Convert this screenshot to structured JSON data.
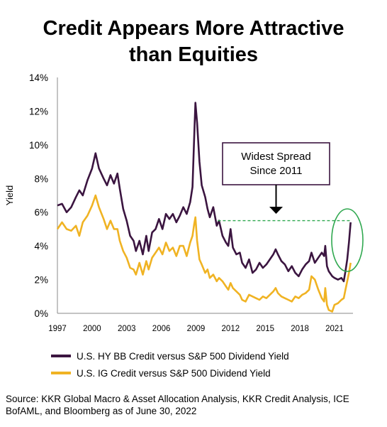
{
  "title_line1": "Credit Appears More Attractive",
  "title_line2": "than Equities",
  "source_line1": "Source: KKR Global Macro & Asset Allocation Analysis, KKR Credit Analysis, ICE",
  "source_line2": "BofAML, and Bloomberg as of June 30, 2022",
  "colors": {
    "hy": "#3b1540",
    "ig": "#f0b323",
    "spread_line": "#2fa84f",
    "circle": "#2fa84f",
    "axis": "#888888"
  },
  "chart_data": {
    "type": "line",
    "title": "Credit Appears More Attractive than Equities",
    "ylabel": "Yield",
    "xlabel": "",
    "xlim": [
      1997,
      2022.6
    ],
    "ylim": [
      0,
      14
    ],
    "x_ticks": [
      "1997",
      "2000",
      "2003",
      "2006",
      "2009",
      "2012",
      "2015",
      "2018",
      "2021"
    ],
    "y_ticks": [
      "0%",
      "2%",
      "4%",
      "6%",
      "8%",
      "10%",
      "12%",
      "14%"
    ],
    "annotation": {
      "text_line1": "Widest Spread",
      "text_line2": "Since 2011",
      "reference_level": 5.5,
      "reference_from": 2010.9,
      "reference_to": 2022.4
    },
    "series": [
      {
        "name": "U.S. HY BB Credit versus S&P 500 Dividend Yield",
        "points": [
          [
            1997.0,
            6.4
          ],
          [
            1997.4,
            6.5
          ],
          [
            1997.8,
            6.0
          ],
          [
            1998.2,
            6.3
          ],
          [
            1998.6,
            6.9
          ],
          [
            1998.9,
            7.3
          ],
          [
            1999.2,
            7.0
          ],
          [
            1999.6,
            7.9
          ],
          [
            2000.0,
            8.6
          ],
          [
            2000.3,
            9.5
          ],
          [
            2000.6,
            8.6
          ],
          [
            2001.0,
            8.0
          ],
          [
            2001.3,
            7.6
          ],
          [
            2001.6,
            8.2
          ],
          [
            2001.9,
            7.7
          ],
          [
            2002.2,
            8.3
          ],
          [
            2002.4,
            7.4
          ],
          [
            2002.7,
            6.2
          ],
          [
            2003.0,
            5.5
          ],
          [
            2003.3,
            4.6
          ],
          [
            2003.6,
            4.3
          ],
          [
            2003.8,
            3.7
          ],
          [
            2004.1,
            4.3
          ],
          [
            2004.4,
            3.5
          ],
          [
            2004.7,
            4.6
          ],
          [
            2004.9,
            3.7
          ],
          [
            2005.2,
            4.8
          ],
          [
            2005.5,
            5.0
          ],
          [
            2005.8,
            5.6
          ],
          [
            2006.1,
            5.0
          ],
          [
            2006.4,
            5.9
          ],
          [
            2006.7,
            5.6
          ],
          [
            2007.0,
            5.9
          ],
          [
            2007.3,
            5.4
          ],
          [
            2007.6,
            5.8
          ],
          [
            2007.9,
            6.3
          ],
          [
            2008.2,
            5.9
          ],
          [
            2008.5,
            6.6
          ],
          [
            2008.7,
            7.5
          ],
          [
            2008.85,
            10.5
          ],
          [
            2008.95,
            12.5
          ],
          [
            2009.1,
            11.3
          ],
          [
            2009.3,
            9.0
          ],
          [
            2009.5,
            7.6
          ],
          [
            2009.8,
            6.9
          ],
          [
            2010.0,
            6.2
          ],
          [
            2010.2,
            5.7
          ],
          [
            2010.5,
            6.3
          ],
          [
            2010.8,
            5.2
          ],
          [
            2011.0,
            5.5
          ],
          [
            2011.3,
            4.6
          ],
          [
            2011.6,
            4.2
          ],
          [
            2011.8,
            4.0
          ],
          [
            2012.0,
            5.0
          ],
          [
            2012.2,
            3.9
          ],
          [
            2012.5,
            3.5
          ],
          [
            2012.8,
            3.6
          ],
          [
            2013.0,
            3.0
          ],
          [
            2013.3,
            2.7
          ],
          [
            2013.6,
            3.2
          ],
          [
            2013.9,
            2.4
          ],
          [
            2014.2,
            2.6
          ],
          [
            2014.5,
            3.0
          ],
          [
            2014.8,
            2.7
          ],
          [
            2015.1,
            2.9
          ],
          [
            2015.4,
            3.2
          ],
          [
            2015.7,
            3.5
          ],
          [
            2015.9,
            3.8
          ],
          [
            2016.1,
            3.5
          ],
          [
            2016.4,
            3.1
          ],
          [
            2016.7,
            2.9
          ],
          [
            2017.0,
            2.5
          ],
          [
            2017.3,
            2.8
          ],
          [
            2017.6,
            2.4
          ],
          [
            2017.9,
            2.2
          ],
          [
            2018.2,
            2.6
          ],
          [
            2018.5,
            2.9
          ],
          [
            2018.8,
            3.1
          ],
          [
            2019.0,
            3.6
          ],
          [
            2019.3,
            3.0
          ],
          [
            2019.6,
            3.3
          ],
          [
            2019.9,
            3.6
          ],
          [
            2020.1,
            3.4
          ],
          [
            2020.2,
            4.0
          ],
          [
            2020.35,
            2.8
          ],
          [
            2020.5,
            2.5
          ],
          [
            2020.8,
            2.2
          ],
          [
            2021.0,
            2.1
          ],
          [
            2021.3,
            2.0
          ],
          [
            2021.6,
            2.1
          ],
          [
            2021.8,
            1.9
          ],
          [
            2021.95,
            2.5
          ],
          [
            2022.1,
            3.2
          ],
          [
            2022.25,
            4.2
          ],
          [
            2022.4,
            5.4
          ]
        ]
      },
      {
        "name": "U.S. IG Credit versus S&P 500 Dividend Yield",
        "points": [
          [
            1997.0,
            5.0
          ],
          [
            1997.4,
            5.4
          ],
          [
            1997.8,
            5.0
          ],
          [
            1998.2,
            4.9
          ],
          [
            1998.6,
            5.2
          ],
          [
            1998.9,
            4.6
          ],
          [
            1999.2,
            5.4
          ],
          [
            1999.6,
            5.8
          ],
          [
            2000.0,
            6.4
          ],
          [
            2000.3,
            7.0
          ],
          [
            2000.6,
            6.3
          ],
          [
            2001.0,
            5.6
          ],
          [
            2001.3,
            5.0
          ],
          [
            2001.6,
            5.5
          ],
          [
            2001.9,
            5.0
          ],
          [
            2002.2,
            5.0
          ],
          [
            2002.4,
            4.3
          ],
          [
            2002.7,
            3.7
          ],
          [
            2003.0,
            3.3
          ],
          [
            2003.3,
            2.7
          ],
          [
            2003.6,
            2.6
          ],
          [
            2003.8,
            2.3
          ],
          [
            2004.1,
            3.0
          ],
          [
            2004.4,
            2.3
          ],
          [
            2004.7,
            3.1
          ],
          [
            2004.9,
            2.6
          ],
          [
            2005.2,
            3.3
          ],
          [
            2005.5,
            3.6
          ],
          [
            2005.8,
            3.9
          ],
          [
            2006.1,
            3.5
          ],
          [
            2006.4,
            4.2
          ],
          [
            2006.7,
            3.7
          ],
          [
            2007.0,
            3.9
          ],
          [
            2007.3,
            3.4
          ],
          [
            2007.6,
            4.0
          ],
          [
            2007.9,
            4.0
          ],
          [
            2008.2,
            3.4
          ],
          [
            2008.5,
            4.2
          ],
          [
            2008.7,
            4.6
          ],
          [
            2008.85,
            5.3
          ],
          [
            2008.95,
            5.7
          ],
          [
            2009.1,
            4.3
          ],
          [
            2009.3,
            3.2
          ],
          [
            2009.5,
            2.9
          ],
          [
            2009.8,
            2.4
          ],
          [
            2010.0,
            2.6
          ],
          [
            2010.2,
            2.1
          ],
          [
            2010.5,
            2.3
          ],
          [
            2010.8,
            1.9
          ],
          [
            2011.0,
            2.1
          ],
          [
            2011.3,
            1.9
          ],
          [
            2011.6,
            1.6
          ],
          [
            2011.8,
            1.4
          ],
          [
            2012.0,
            1.8
          ],
          [
            2012.2,
            1.5
          ],
          [
            2012.5,
            1.3
          ],
          [
            2012.8,
            1.1
          ],
          [
            2013.0,
            0.8
          ],
          [
            2013.3,
            0.7
          ],
          [
            2013.6,
            1.1
          ],
          [
            2013.9,
            1.0
          ],
          [
            2014.2,
            0.9
          ],
          [
            2014.5,
            0.8
          ],
          [
            2014.8,
            1.0
          ],
          [
            2015.1,
            0.9
          ],
          [
            2015.4,
            1.1
          ],
          [
            2015.7,
            1.3
          ],
          [
            2015.9,
            1.5
          ],
          [
            2016.1,
            1.2
          ],
          [
            2016.4,
            1.0
          ],
          [
            2016.7,
            0.9
          ],
          [
            2017.0,
            0.8
          ],
          [
            2017.3,
            0.7
          ],
          [
            2017.6,
            1.0
          ],
          [
            2017.9,
            0.9
          ],
          [
            2018.2,
            1.1
          ],
          [
            2018.5,
            1.2
          ],
          [
            2018.8,
            1.4
          ],
          [
            2019.0,
            2.2
          ],
          [
            2019.3,
            2.0
          ],
          [
            2019.6,
            1.4
          ],
          [
            2019.9,
            0.9
          ],
          [
            2020.1,
            0.7
          ],
          [
            2020.2,
            1.5
          ],
          [
            2020.35,
            0.5
          ],
          [
            2020.5,
            0.2
          ],
          [
            2020.8,
            0.1
          ],
          [
            2021.0,
            0.5
          ],
          [
            2021.3,
            0.6
          ],
          [
            2021.6,
            0.8
          ],
          [
            2021.8,
            0.9
          ],
          [
            2021.95,
            1.4
          ],
          [
            2022.1,
            1.9
          ],
          [
            2022.25,
            2.4
          ],
          [
            2022.4,
            3.0
          ]
        ]
      }
    ]
  }
}
